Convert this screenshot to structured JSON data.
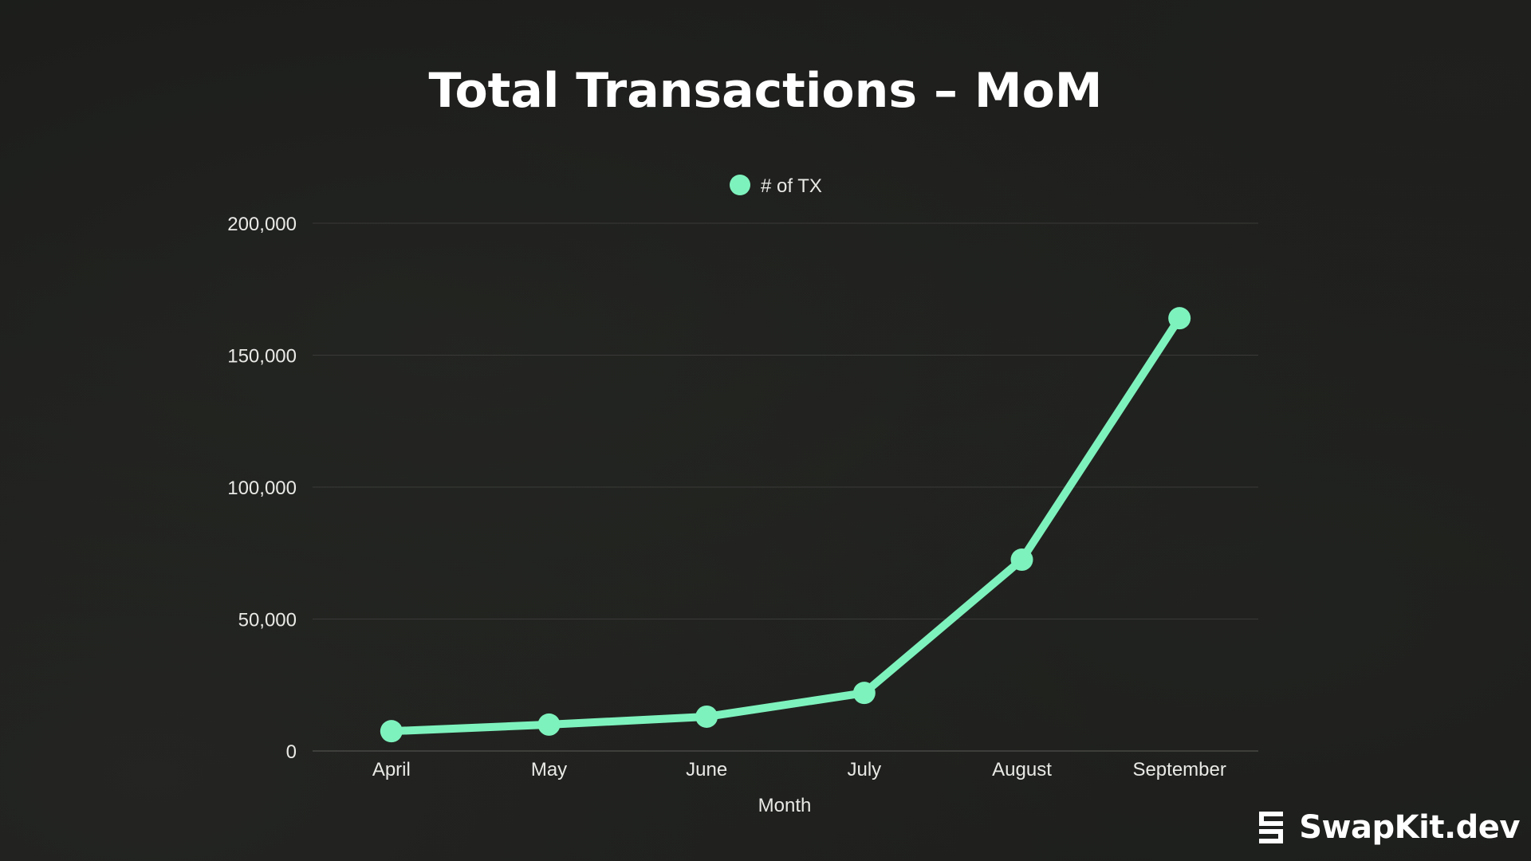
{
  "colors": {
    "line": "#7ef2bd",
    "grid": "#3a3b38",
    "text": "#e9e9e6",
    "title": "#ffffff"
  },
  "chart_data": {
    "type": "line",
    "title": "Total Transactions – MoM",
    "xlabel": "Month",
    "ylabel": "",
    "categories": [
      "April",
      "May",
      "June",
      "July",
      "August",
      "September"
    ],
    "series": [
      {
        "name": "# of TX",
        "values": [
          7500,
          10000,
          13000,
          22000,
          72500,
          164000
        ]
      }
    ],
    "ylim": [
      0,
      200000
    ],
    "yticks": [
      0,
      50000,
      100000,
      150000,
      200000
    ],
    "ytick_labels": [
      "0",
      "50,000",
      "100,000",
      "150,000",
      "200,000"
    ],
    "grid": true,
    "legend_position": "top-center"
  },
  "brand": {
    "name": "SwapKit.dev",
    "logo_icon": "swapkit-logo-icon"
  }
}
